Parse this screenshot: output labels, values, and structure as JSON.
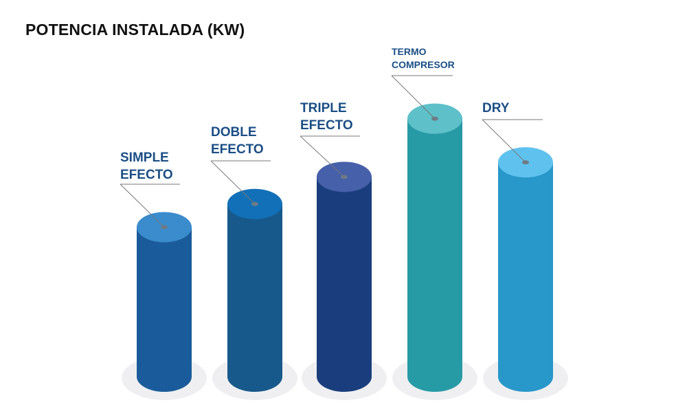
{
  "chart_data": {
    "type": "bar",
    "title": "POTENCIA INSTALADA (KW)",
    "categories": [
      {
        "lines": [
          "SIMPLE",
          "EFECTO"
        ],
        "size": "large"
      },
      {
        "lines": [
          "DOBLE",
          "EFECTO"
        ],
        "size": "large"
      },
      {
        "lines": [
          "TRIPLE",
          "EFECTO"
        ],
        "size": "large"
      },
      {
        "lines": [
          "TERMO",
          "COMPRESOR"
        ],
        "size": "small"
      },
      {
        "lines": [
          "DRY"
        ],
        "size": "large"
      }
    ],
    "values": [
      226,
      261,
      302,
      390,
      324
    ],
    "ylim": [
      0,
      400
    ],
    "grid": false,
    "colors": [
      {
        "body": "#1a5c9b",
        "top": "#3a8ccd"
      },
      {
        "body": "#16598a",
        "top": "#1270b8"
      },
      {
        "body": "#1a3e7d",
        "top": "#4660aa"
      },
      {
        "body": "#279ba5",
        "top": "#5ec0c9"
      },
      {
        "body": "#2897c9",
        "top": "#5fc2ee"
      }
    ]
  }
}
